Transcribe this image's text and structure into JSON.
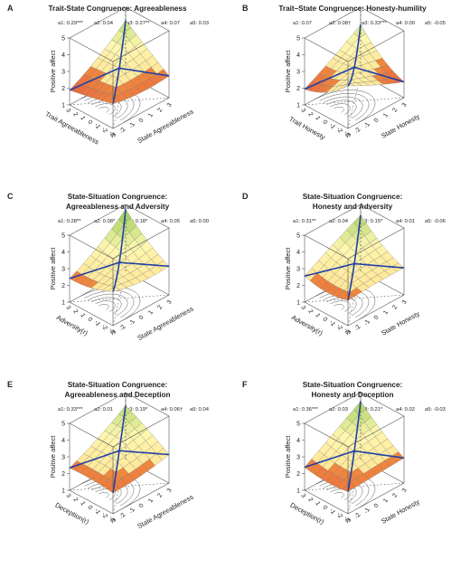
{
  "chart_data": [
    {
      "type": "surface3d",
      "letter": "A",
      "title_lines": [
        "Trait-State Congruence: Agreeableness"
      ],
      "coefficients": [
        "a1: 0.29***",
        "a2: 0.04",
        "a3: 0.27**",
        "a4: 0.07",
        "a5: 0.03"
      ],
      "zlabel": "Positive affect",
      "xlabel": "State Agreeableness",
      "ylabel": "Trait Agreeableness",
      "x_ticks": [
        "-3",
        "-2",
        "-1",
        "0",
        "1",
        "2",
        "3"
      ],
      "y_ticks": [
        "-3",
        "-2",
        "-1",
        "0",
        "1",
        "2",
        "3"
      ],
      "z_ticks": [
        "1",
        "2",
        "3",
        "4",
        "5"
      ],
      "zlim": [
        1,
        5
      ],
      "surface_coef": [
        3.2,
        0.29,
        0.04,
        0.27,
        0.07,
        0.03
      ]
    },
    {
      "type": "surface3d",
      "letter": "B",
      "title_lines": [
        "Trait–State Congruence: Honesty-humility"
      ],
      "coefficients": [
        "a1: 0.07",
        "a2: 0.08†",
        "a3: 0.33***",
        "a4: 0.00",
        "a5: -0.05"
      ],
      "zlabel": "Positive affect",
      "xlabel": "State Honesty",
      "ylabel": "Trait Honesty",
      "x_ticks": [
        "-3",
        "-2",
        "-1",
        "0",
        "1",
        "2",
        "3"
      ],
      "y_ticks": [
        "-3",
        "-2",
        "-1",
        "0",
        "1",
        "2",
        "3"
      ],
      "z_ticks": [
        "1",
        "2",
        "3",
        "4",
        "5"
      ],
      "zlim": [
        1,
        5
      ],
      "surface_coef": [
        3.3,
        0.07,
        0.08,
        0.33,
        0.0,
        -0.05
      ]
    },
    {
      "type": "surface3d",
      "letter": "C",
      "title_lines": [
        "State-Situation Congruence:",
        "Agreeableness and Adversity"
      ],
      "coefficients": [
        "a1: 0.28**",
        "a2: 0.08*",
        "a3: 0.18*",
        "a4: 0.05",
        "a5: 0.00"
      ],
      "zlabel": "Positive affect",
      "xlabel": "State Agreeableness",
      "ylabel": "Adversity(r)",
      "x_ticks": [
        "-3",
        "-2",
        "-1",
        "0",
        "1",
        "2",
        "3"
      ],
      "y_ticks": [
        "-3",
        "-2",
        "-1",
        "0",
        "1",
        "2",
        "3"
      ],
      "z_ticks": [
        "1",
        "2",
        "3",
        "4",
        "5"
      ],
      "zlim": [
        1,
        5
      ],
      "surface_coef": [
        3.3,
        0.28,
        0.08,
        0.18,
        0.05,
        0.0
      ]
    },
    {
      "type": "surface3d",
      "letter": "D",
      "title_lines": [
        "State-Situation Congruence:",
        "Honesty and Adversity"
      ],
      "coefficients": [
        "a1: 0.31**",
        "a2: 0.04",
        "a3: 0.15*",
        "a4: 0.01",
        "a5: -0.06"
      ],
      "zlabel": "Positive affect",
      "xlabel": "State Honesty",
      "ylabel": "Adversity(r)",
      "x_ticks": [
        "-3",
        "-2",
        "-1",
        "0",
        "1",
        "2",
        "3"
      ],
      "y_ticks": [
        "-3",
        "-2",
        "-1",
        "0",
        "1",
        "2",
        "3"
      ],
      "z_ticks": [
        "1",
        "2",
        "3",
        "4",
        "5"
      ],
      "zlim": [
        1,
        5
      ],
      "surface_coef": [
        3.2,
        0.31,
        0.04,
        0.15,
        0.01,
        -0.06
      ]
    },
    {
      "type": "surface3d",
      "letter": "E",
      "title_lines": [
        "State-Situation Congruence:",
        "Agreeableness and Deception"
      ],
      "coefficients": [
        "a1: 0.33***",
        "a2: 0.01",
        "a3: 0.19*",
        "a4: 0.06†",
        "a5: 0.04"
      ],
      "zlabel": "Positive affect",
      "xlabel": "State Agreeableness",
      "ylabel": "Deception(r)",
      "x_ticks": [
        "-3",
        "-2",
        "-1",
        "0",
        "1",
        "2",
        "3"
      ],
      "y_ticks": [
        "-3",
        "-2",
        "-1",
        "0",
        "1",
        "2",
        "3"
      ],
      "z_ticks": [
        "1",
        "2",
        "3",
        "4",
        "5"
      ],
      "zlim": [
        1,
        5
      ],
      "surface_coef": [
        3.3,
        0.33,
        0.01,
        0.19,
        0.06,
        0.04
      ]
    },
    {
      "type": "surface3d",
      "letter": "F",
      "title_lines": [
        "State-Situation Congruence:",
        "Honesty and Deception"
      ],
      "coefficients": [
        "a1: 0.36***",
        "a2: 0.03",
        "a3: 0.21*",
        "a4: 0.02",
        "a5: -0.03"
      ],
      "zlabel": "Positive affect",
      "xlabel": "State Honesty",
      "ylabel": "Deception(r)",
      "x_ticks": [
        "-3",
        "-2",
        "-1",
        "0",
        "1",
        "2",
        "3"
      ],
      "y_ticks": [
        "-3",
        "-2",
        "-1",
        "0",
        "1",
        "2",
        "3"
      ],
      "z_ticks": [
        "1",
        "2",
        "3",
        "4",
        "5"
      ],
      "zlim": [
        1,
        5
      ],
      "surface_coef": [
        3.3,
        0.36,
        0.03,
        0.21,
        0.02,
        -0.03
      ]
    }
  ],
  "colors": {
    "high": "#7fbf3f",
    "mid": "#fff7b0",
    "low": "#f0883e",
    "deep_low": "#e2553a",
    "line_of_congruence": "#1f3fa8",
    "box": "#555555",
    "contour": "#444444"
  }
}
